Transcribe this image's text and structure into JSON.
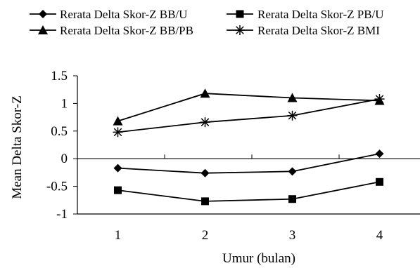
{
  "chart_data": {
    "type": "line",
    "title": "",
    "xlabel": "Umur (bulan)",
    "ylabel": "Mean Delta Skor-Z",
    "x": [
      1,
      2,
      3,
      4
    ],
    "x_tick_labels": [
      "1",
      "2",
      "3",
      "4"
    ],
    "ylim": [
      -1,
      1.5
    ],
    "y_ticks": [
      -1,
      -0.5,
      0,
      0.5,
      1,
      1.5
    ],
    "y_tick_labels": [
      "-1",
      "-0.5",
      "0",
      "0.5",
      "1",
      "1.5"
    ],
    "grid": false,
    "legend_position": "top",
    "line_color": "#000000",
    "series": [
      {
        "name": "Rerata Delta Skor-Z BB/U",
        "marker": "diamond",
        "values": [
          -0.17,
          -0.26,
          -0.23,
          0.09
        ]
      },
      {
        "name": "Rerata Delta Skor-Z PB/U",
        "marker": "square",
        "values": [
          -0.57,
          -0.77,
          -0.73,
          -0.42
        ]
      },
      {
        "name": "Rerata Delta Skor-Z BB/PB",
        "marker": "triangle",
        "values": [
          0.68,
          1.18,
          1.1,
          1.05
        ]
      },
      {
        "name": "Rerata Delta Skor-Z BMI",
        "marker": "star",
        "values": [
          0.48,
          0.66,
          0.78,
          1.08
        ]
      }
    ]
  }
}
